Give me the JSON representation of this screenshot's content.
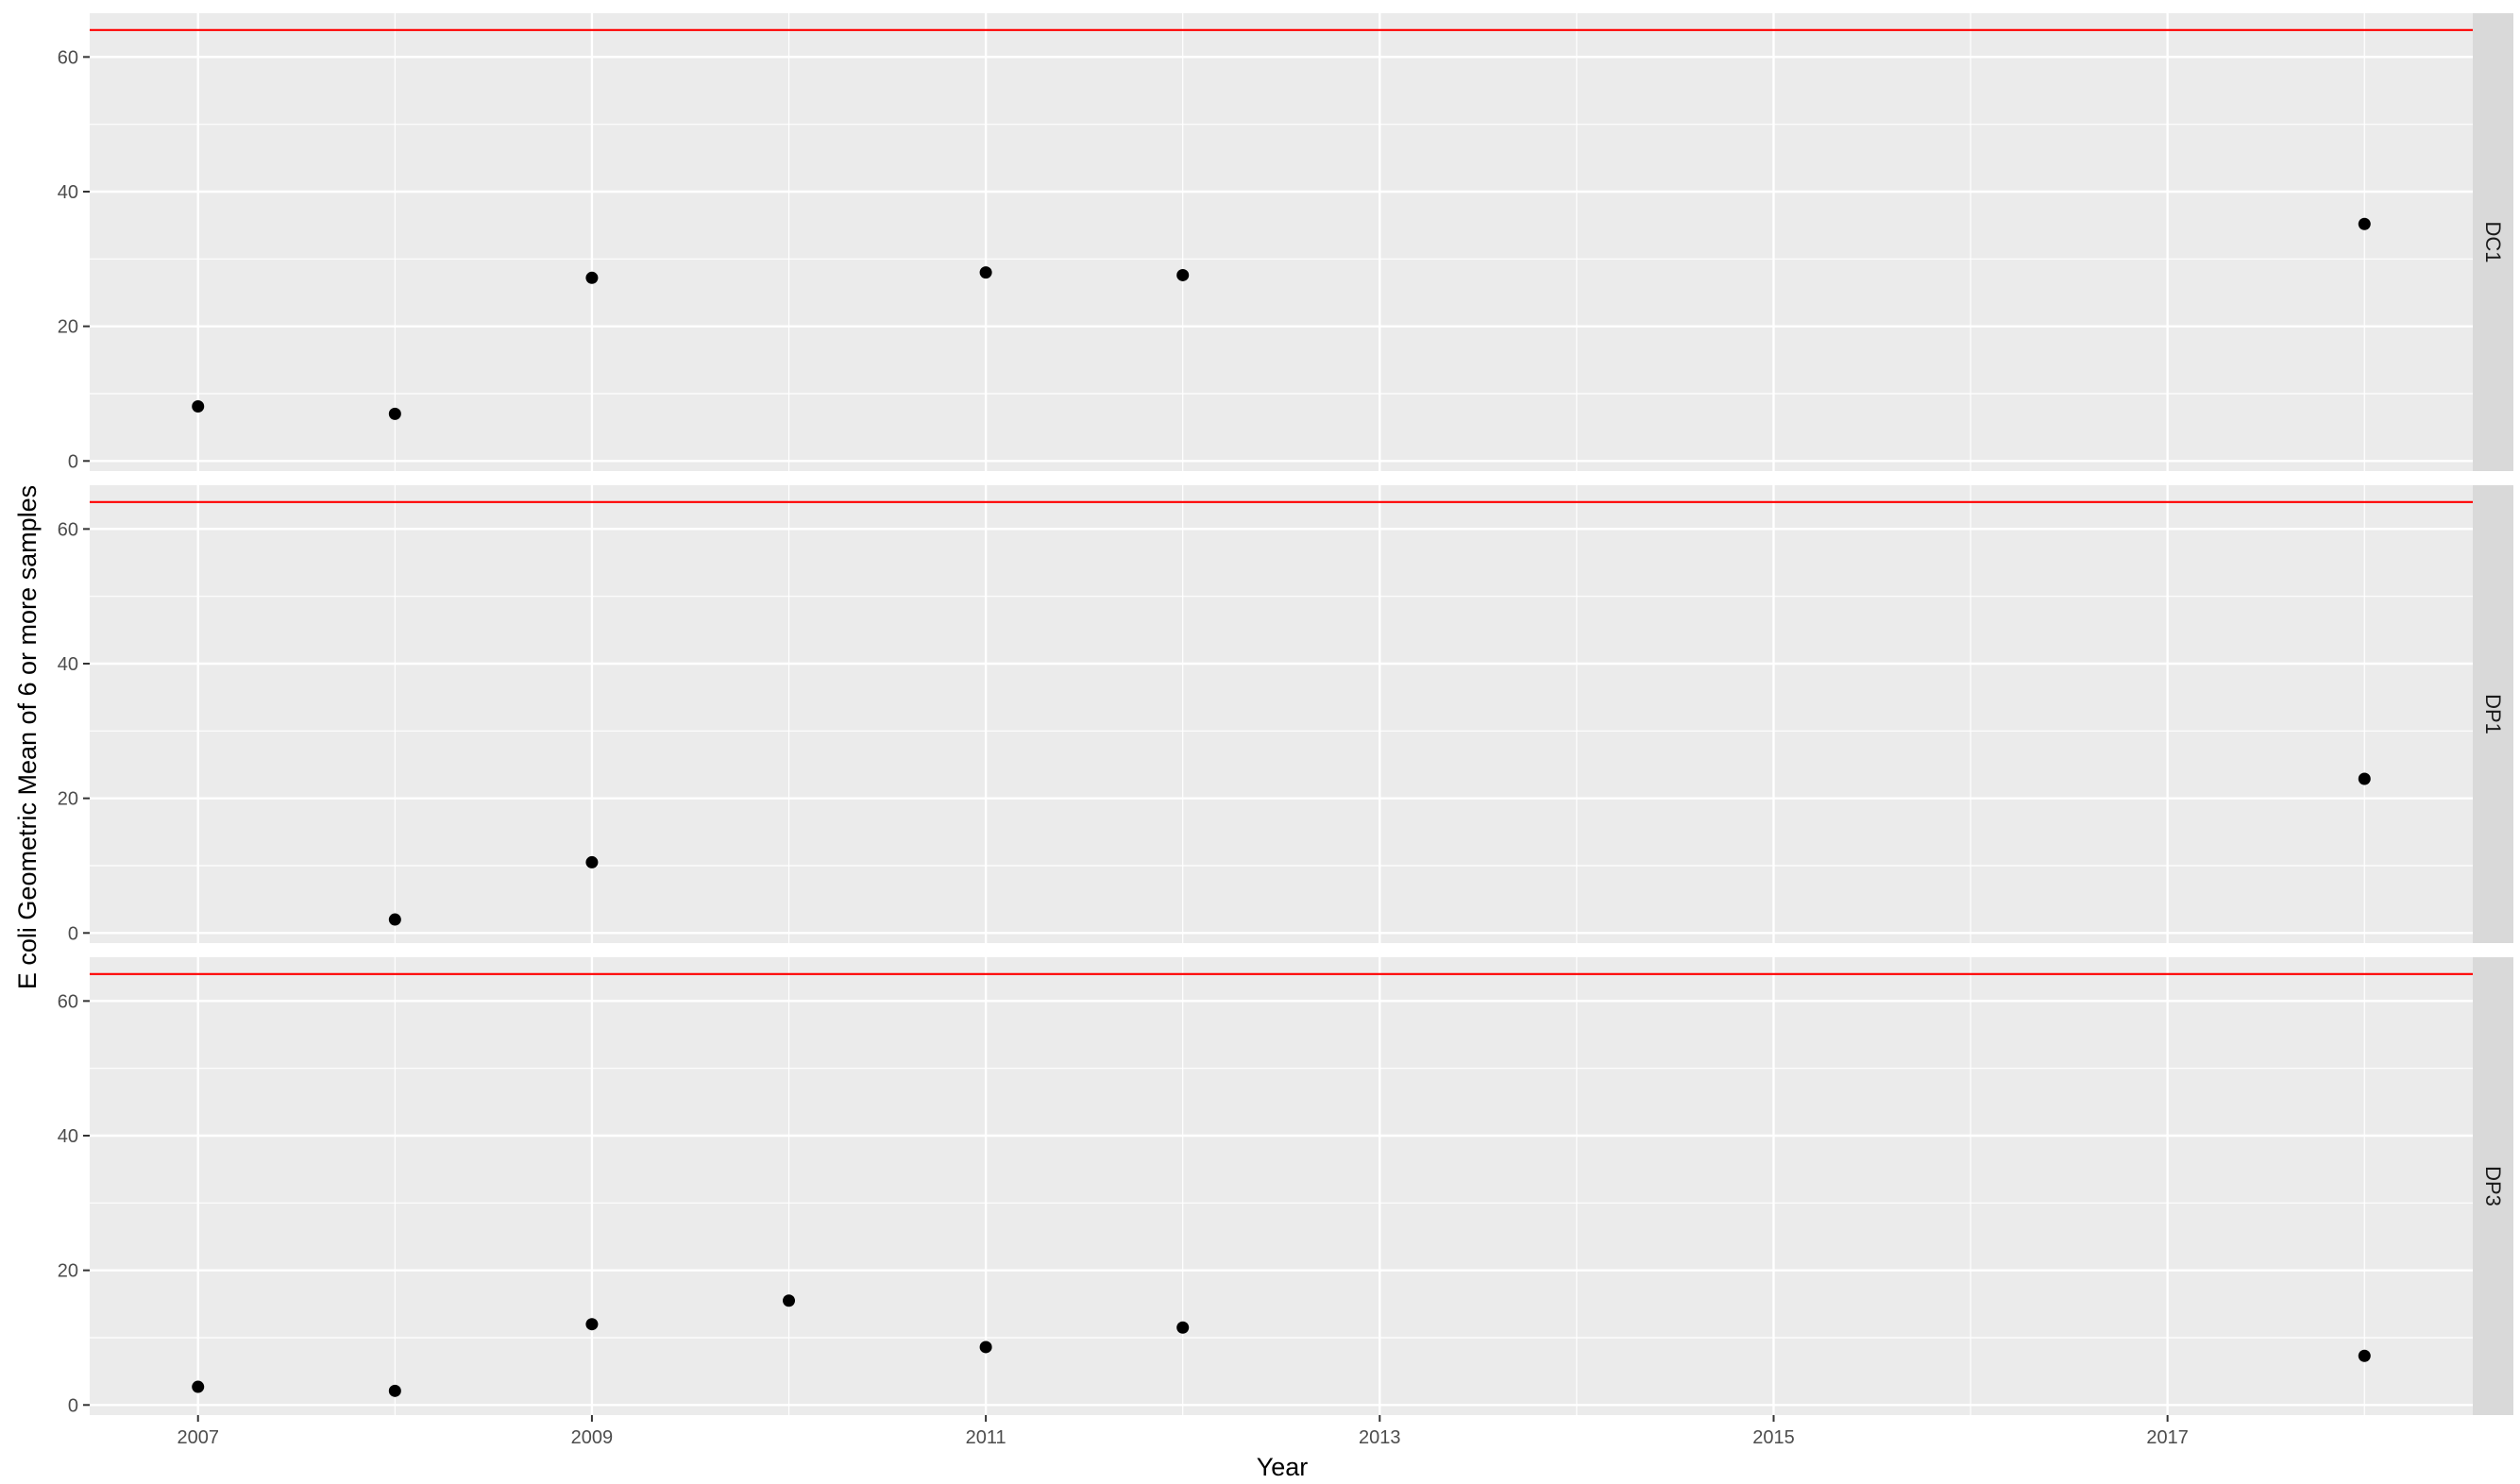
{
  "chart_data": {
    "type": "scatter",
    "xlabel": "Year",
    "ylabel": "E coli Geometric Mean of 6 or more samples",
    "xlim": [
      2006.45,
      2018.55
    ],
    "ylim": [
      -1.5,
      66.5
    ],
    "x_ticks": [
      "2007",
      "2009",
      "2011",
      "2013",
      "2015",
      "2017"
    ],
    "y_ticks": [
      "0",
      "20",
      "40",
      "60"
    ],
    "reference_line": {
      "y": 64,
      "color": "#ff0000"
    },
    "grid": true,
    "legend": "none",
    "colors": {
      "panel": "#ebebeb",
      "grid": "#ffffff",
      "strip": "#d9d9d9",
      "point": "#000000"
    },
    "panels": [
      {
        "label": "DC1",
        "points": [
          {
            "x": 2007,
            "y": 8.1
          },
          {
            "x": 2008,
            "y": 7.0
          },
          {
            "x": 2009,
            "y": 27.2
          },
          {
            "x": 2011,
            "y": 28.0
          },
          {
            "x": 2012,
            "y": 27.6
          },
          {
            "x": 2018,
            "y": 35.2
          }
        ]
      },
      {
        "label": "DP1",
        "points": [
          {
            "x": 2008,
            "y": 2.0
          },
          {
            "x": 2009,
            "y": 10.5
          },
          {
            "x": 2018,
            "y": 22.9
          }
        ]
      },
      {
        "label": "DP3",
        "points": [
          {
            "x": 2007,
            "y": 2.7
          },
          {
            "x": 2008,
            "y": 2.1
          },
          {
            "x": 2009,
            "y": 12.0
          },
          {
            "x": 2010,
            "y": 15.5
          },
          {
            "x": 2011,
            "y": 8.6
          },
          {
            "x": 2012,
            "y": 11.5
          },
          {
            "x": 2018,
            "y": 7.3
          }
        ]
      }
    ]
  }
}
